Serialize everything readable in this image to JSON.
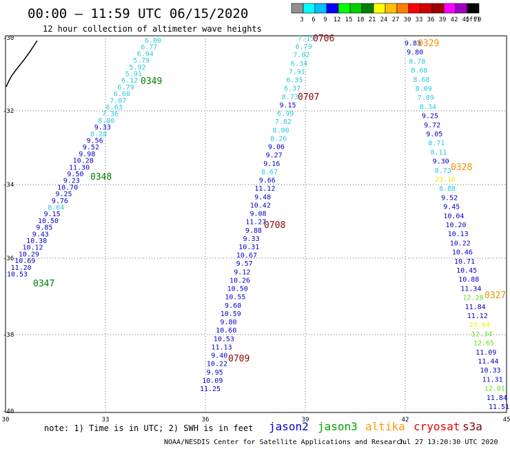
{
  "header": {
    "title": "00:00 – 11:59 UTC 06/15/2020",
    "subtitle": "12 hour collection of altimeter wave heights"
  },
  "legend_scale": {
    "ticks": [
      "3",
      "6",
      "9",
      "12",
      "15",
      "18",
      "21",
      "24",
      "27",
      "30",
      "33",
      "36",
      "39",
      "42",
      "45",
      "70"
    ],
    "unit": "(ft)",
    "colors": [
      "#909090",
      "#00ffff",
      "#00bfff",
      "#0000ff",
      "#00ff00",
      "#00d000",
      "#008000",
      "#ffff00",
      "#ffc000",
      "#ff8000",
      "#ff0000",
      "#d00000",
      "#a00000",
      "#ff00ff",
      "#a000c0",
      "#000000"
    ]
  },
  "axes": {
    "x_labels": [
      "30",
      "33",
      "36",
      "39",
      "42",
      "45"
    ],
    "y_labels": [
      "-30",
      "-32",
      "-34",
      "-36",
      "-38",
      "-40"
    ]
  },
  "tracks": [
    {
      "values": [
        "6.00",
        "6.77",
        "6.94",
        "5.79",
        "5.92",
        "5.91",
        "6.12",
        "6.79",
        "6.60",
        "7.07",
        "6.63",
        "7.36",
        "8.00",
        "9.33",
        "8.28",
        "9.56",
        "9.52",
        "9.98",
        "10.28",
        "11.30",
        "9.50",
        "9.23",
        "10.70",
        "9.25",
        "9.76",
        "8.64",
        "9.15",
        "10.50",
        "9.85",
        "9.43",
        "10.38",
        "10.12",
        "10.29",
        "10.69",
        "11.20",
        "10.53"
      ],
      "colors": [
        "cyan",
        "cyan",
        "cyan",
        "cyan",
        "cyan",
        "cyan",
        "cyan",
        "cyan",
        "cyan",
        "cyan",
        "cyan",
        "cyan",
        "cyan",
        "blue",
        "cyan",
        "blue",
        "blue",
        "blue",
        "blue",
        "blue",
        "blue",
        "blue",
        "blue",
        "blue",
        "blue",
        "cyan",
        "blue",
        "blue",
        "blue",
        "blue",
        "blue",
        "blue",
        "blue",
        "blue",
        "blue",
        "blue"
      ],
      "times": [
        {
          "label": "0349",
          "color": "green"
        },
        {
          "label": "0348",
          "color": "green"
        },
        {
          "label": "0347",
          "color": "green"
        }
      ]
    },
    {
      "values": [
        "7.15",
        "6.79",
        "7.02",
        "6.34",
        "7.91",
        "6.35",
        "6.37",
        "8.73",
        "9.15",
        "6.99",
        "7.82",
        "8.00",
        "8.26",
        "9.06",
        "9.27",
        "9.16",
        "8.67",
        "9.66",
        "11.12",
        "9.48",
        "10.42",
        "9.08",
        "11.27",
        "9.88",
        "9.33",
        "10.31",
        "10.67",
        "9.57",
        "9.12",
        "10.26",
        "10.50",
        "10.55",
        "9.60",
        "10.59",
        "9.80",
        "10.60",
        "10.53",
        "11.13",
        "9.40",
        "10.22",
        "9.95",
        "10.09",
        "11.25"
      ],
      "colors": [
        "cyan",
        "cyan",
        "cyan",
        "cyan",
        "cyan",
        "cyan",
        "cyan",
        "cyan",
        "blue",
        "cyan",
        "cyan",
        "cyan",
        "cyan",
        "blue",
        "blue",
        "blue",
        "cyan",
        "blue",
        "blue",
        "blue",
        "blue",
        "blue",
        "blue",
        "blue",
        "blue",
        "blue",
        "blue",
        "blue",
        "blue",
        "blue",
        "blue",
        "blue",
        "blue",
        "blue",
        "blue",
        "blue",
        "blue",
        "blue",
        "blue",
        "blue",
        "blue",
        "blue",
        "blue"
      ],
      "times": [
        {
          "label": "0706",
          "color": "darkred"
        },
        {
          "label": "0707",
          "color": "darkred"
        },
        {
          "label": "0708",
          "color": "darkred"
        },
        {
          "label": "0709",
          "color": "darkred"
        }
      ]
    },
    {
      "values": [
        "9.83",
        "9.80",
        "8.78",
        "8.68",
        "8.68",
        "8.09",
        "7.89",
        "8.34",
        "9.25",
        "9.72",
        "9.05",
        "8.71",
        "8.11",
        "9.30",
        "8.73",
        "23.16",
        "8.88",
        "9.52",
        "9.45",
        "10.04",
        "10.20",
        "10.13",
        "10.22",
        "10.46",
        "10.71",
        "10.45",
        "10.88",
        "11.34",
        "12.28",
        "11.84",
        "11.12",
        "23.64",
        "12.34",
        "12.65",
        "11.09",
        "11.44",
        "10.33",
        "11.31",
        "12.01",
        "11.84",
        "11.51"
      ],
      "colors": [
        "blue",
        "blue",
        "cyan",
        "cyan",
        "cyan",
        "cyan",
        "cyan",
        "cyan",
        "blue",
        "blue",
        "blue",
        "cyan",
        "cyan",
        "blue",
        "cyan",
        "yellow",
        "cyan",
        "blue",
        "blue",
        "blue",
        "blue",
        "blue",
        "blue",
        "blue",
        "blue",
        "blue",
        "blue",
        "blue",
        "lime",
        "blue",
        "blue",
        "yellow",
        "lime",
        "lime",
        "blue",
        "blue",
        "blue",
        "blue",
        "lime",
        "blue",
        "blue"
      ],
      "times": [
        {
          "label": "0329",
          "color": "orange"
        },
        {
          "label": "0328",
          "color": "orange"
        },
        {
          "label": "0327",
          "color": "orange"
        }
      ]
    }
  ],
  "footer": {
    "note": "note: 1) Time is in UTC; 2) SWH is in feet",
    "satellites": [
      {
        "name": "jason2",
        "color": "#0000d0"
      },
      {
        "name": "jason3",
        "color": "#00a000"
      },
      {
        "name": "altika",
        "color": "#ff9900"
      },
      {
        "name": "cryosat",
        "color": "#e00000"
      },
      {
        "name": "s3a",
        "color": "#880000"
      }
    ],
    "credit": "NOAA/NESDIS Center for Satellite Applications and Research",
    "timestamp": "Jul 27 13:20:30 UTC 2020"
  },
  "palette": {
    "cyan": "#28c8e0",
    "blue": "#0000c8",
    "yellow": "#f5e800",
    "lime": "#60e020",
    "green": "#008000",
    "darkred": "#880000",
    "orange": "#f09000"
  }
}
